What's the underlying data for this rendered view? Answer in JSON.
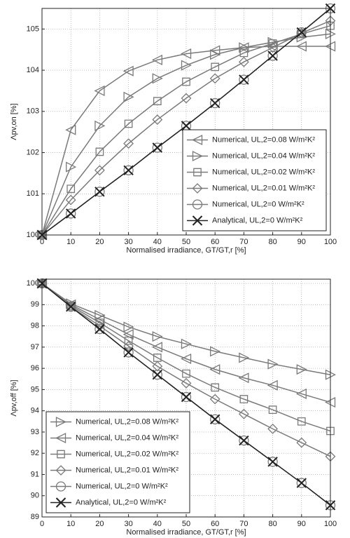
{
  "chart_data": [
    {
      "type": "line",
      "xlabel": "Normalised irradiance, GT/GT,r [%]",
      "ylabel": "Λpv,on [%]",
      "x": [
        0,
        10,
        20,
        30,
        40,
        50,
        60,
        70,
        80,
        90,
        100
      ],
      "xlim": [
        0,
        100
      ],
      "ylim": [
        100,
        105.5
      ],
      "xticks": [
        0,
        10,
        20,
        30,
        40,
        50,
        60,
        70,
        80,
        90,
        100
      ],
      "yticks": [
        100,
        101,
        102,
        103,
        104,
        105
      ],
      "grid": true,
      "legend_loc": "lower right",
      "series": [
        {
          "name": "Numerical, UL,2=0.08 W/m²K²",
          "color": "#7a7a7a",
          "marker": "triangle-left",
          "values": [
            100,
            102.55,
            103.5,
            103.98,
            104.25,
            104.4,
            104.48,
            104.55,
            104.58,
            104.58,
            104.58
          ]
        },
        {
          "name": "Numerical, UL,2=0.04 W/m²K²",
          "color": "#7a7a7a",
          "marker": "triangle-right",
          "values": [
            100,
            101.65,
            102.65,
            103.35,
            103.8,
            104.12,
            104.38,
            104.55,
            104.68,
            104.8,
            104.88
          ]
        },
        {
          "name": "Numerical, UL,2=0.02 W/m²K²",
          "color": "#7a7a7a",
          "marker": "square",
          "values": [
            100,
            101.12,
            102.02,
            102.7,
            103.25,
            103.72,
            104.08,
            104.42,
            104.65,
            104.88,
            105.08
          ]
        },
        {
          "name": "Numerical, UL,2=0.01 W/m²K²",
          "color": "#7a7a7a",
          "marker": "diamond",
          "values": [
            100,
            100.85,
            101.57,
            102.22,
            102.8,
            103.32,
            103.8,
            104.2,
            104.55,
            104.9,
            105.2
          ]
        },
        {
          "name": "Numerical, UL,2=0 W/m²K²",
          "color": "#7a7a7a",
          "marker": "circle",
          "values": [
            100,
            100.52,
            101.05,
            101.57,
            102.12,
            102.65,
            103.2,
            103.77,
            104.35,
            104.92,
            105.5
          ]
        },
        {
          "name": "Analytical, UL,2=0 W/m²K²",
          "color": "#222222",
          "marker": "x",
          "values": [
            100,
            100.52,
            101.05,
            101.57,
            102.12,
            102.65,
            103.2,
            103.77,
            104.35,
            104.92,
            105.5
          ]
        }
      ]
    },
    {
      "type": "line",
      "xlabel": "Normalised irradiance, GT/GT,r [%]",
      "ylabel": "Λpv,off [%]",
      "x": [
        0,
        10,
        20,
        30,
        40,
        50,
        60,
        70,
        80,
        90,
        100
      ],
      "xlim": [
        0,
        100
      ],
      "ylim": [
        89,
        100.2
      ],
      "xticks": [
        0,
        10,
        20,
        30,
        40,
        50,
        60,
        70,
        80,
        90,
        100
      ],
      "yticks": [
        89,
        90,
        91,
        92,
        93,
        94,
        95,
        96,
        97,
        98,
        99,
        100
      ],
      "grid": true,
      "legend_loc": "lower left",
      "series": [
        {
          "name": "Numerical, UL,2=0.08 W/m²K²",
          "color": "#7a7a7a",
          "marker": "triangle-right",
          "values": [
            100,
            99.05,
            98.5,
            97.95,
            97.5,
            97.15,
            96.8,
            96.5,
            96.2,
            95.95,
            95.7
          ]
        },
        {
          "name": "Numerical, UL,2=0.04 W/m²K²",
          "color": "#7a7a7a",
          "marker": "triangle-left",
          "values": [
            100,
            99.0,
            98.3,
            97.6,
            97.0,
            96.45,
            95.95,
            95.55,
            95.2,
            94.8,
            94.4
          ]
        },
        {
          "name": "Numerical, UL,2=0.02 W/m²K²",
          "color": "#7a7a7a",
          "marker": "square",
          "values": [
            100,
            98.95,
            98.15,
            97.3,
            96.5,
            95.75,
            95.1,
            94.55,
            94.05,
            93.5,
            93.05
          ]
        },
        {
          "name": "Numerical, UL,2=0.01 W/m²K²",
          "color": "#7a7a7a",
          "marker": "diamond",
          "values": [
            100,
            98.9,
            98.0,
            97.05,
            96.1,
            95.3,
            94.55,
            93.85,
            93.15,
            92.5,
            91.85
          ]
        },
        {
          "name": "Numerical, UL,2=0 W/m²K²",
          "color": "#7a7a7a",
          "marker": "circle",
          "values": [
            100,
            98.9,
            97.85,
            96.75,
            95.7,
            94.65,
            93.6,
            92.6,
            91.6,
            90.6,
            89.55
          ]
        },
        {
          "name": "Analytical, UL,2=0 W/m²K²",
          "color": "#222222",
          "marker": "x",
          "values": [
            100,
            98.9,
            97.85,
            96.75,
            95.7,
            94.65,
            93.6,
            92.6,
            91.6,
            90.6,
            89.55
          ]
        }
      ]
    }
  ]
}
